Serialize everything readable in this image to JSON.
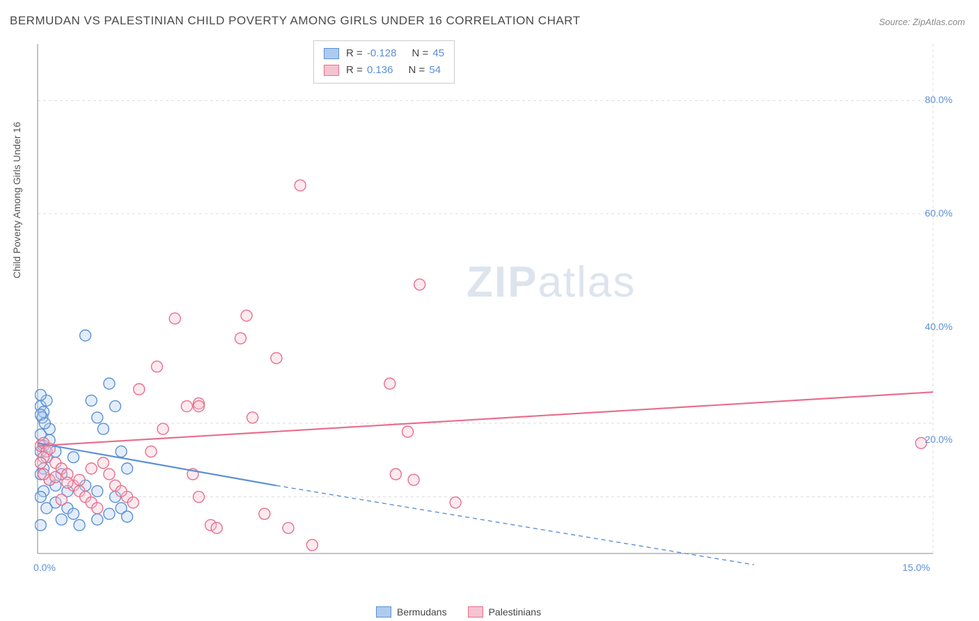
{
  "title": "BERMUDAN VS PALESTINIAN CHILD POVERTY AMONG GIRLS UNDER 16 CORRELATION CHART",
  "source": "Source: ZipAtlas.com",
  "ylabel": "Child Poverty Among Girls Under 16",
  "watermark_bold": "ZIP",
  "watermark_light": "atlas",
  "xlim": [
    0,
    15
  ],
  "ylim": [
    0,
    90
  ],
  "xtick_labels": [
    "0.0%",
    "15.0%"
  ],
  "xtick_positions": [
    0,
    15
  ],
  "ytick_labels": [
    "20.0%",
    "40.0%",
    "60.0%",
    "80.0%"
  ],
  "ytick_positions": [
    20,
    40,
    60,
    80
  ],
  "grid_y": [
    10,
    23,
    60,
    80
  ],
  "background_color": "#ffffff",
  "grid_color": "#dcdcdc",
  "axis_color": "#888888",
  "tick_label_color": "#5b8fd6",
  "marker_radius": 8,
  "marker_fill_opacity": 0.35,
  "marker_stroke_width": 1.4,
  "trend_line_width": 2.2,
  "series": [
    {
      "name": "Bermudans",
      "color": "#5b8fd6",
      "fill": "#aecbef",
      "R": "-0.128",
      "N": "45",
      "trend": {
        "x1": 0,
        "y1": 19.5,
        "x2": 4.0,
        "y2": 12.0,
        "extrap_x2": 12.0,
        "extrap_y2": -2.0
      },
      "points": [
        [
          0.05,
          26
        ],
        [
          0.1,
          25
        ],
        [
          0.08,
          24
        ],
        [
          0.15,
          27
        ],
        [
          0.2,
          22
        ],
        [
          0.05,
          21
        ],
        [
          0.1,
          19
        ],
        [
          0.05,
          18
        ],
        [
          0.2,
          20
        ],
        [
          0.15,
          17
        ],
        [
          0.1,
          15
        ],
        [
          0.05,
          14
        ],
        [
          0.2,
          13
        ],
        [
          0.3,
          12
        ],
        [
          0.1,
          11
        ],
        [
          0.05,
          10
        ],
        [
          0.3,
          9
        ],
        [
          0.5,
          8
        ],
        [
          0.6,
          7
        ],
        [
          0.15,
          8
        ],
        [
          0.4,
          6
        ],
        [
          0.05,
          5
        ],
        [
          0.7,
          5
        ],
        [
          0.9,
          27
        ],
        [
          1.0,
          24
        ],
        [
          1.2,
          30
        ],
        [
          1.3,
          26
        ],
        [
          1.1,
          22
        ],
        [
          1.4,
          18
        ],
        [
          1.5,
          15
        ],
        [
          1.0,
          11
        ],
        [
          1.4,
          8
        ],
        [
          1.5,
          6.5
        ],
        [
          1.0,
          6
        ],
        [
          0.8,
          38.5
        ],
        [
          0.05,
          28
        ],
        [
          0.05,
          24.5
        ],
        [
          0.12,
          23
        ],
        [
          0.3,
          18
        ],
        [
          0.4,
          14
        ],
        [
          0.5,
          11
        ],
        [
          0.6,
          17
        ],
        [
          0.8,
          12
        ],
        [
          1.2,
          7
        ],
        [
          1.3,
          10
        ]
      ]
    },
    {
      "name": "Palestinians",
      "color": "#e76f8c",
      "fill": "#f6c4d0",
      "R": "0.136",
      "N": "54",
      "trend": {
        "x1": 0,
        "y1": 19.0,
        "x2": 15.0,
        "y2": 28.5
      },
      "points": [
        [
          0.05,
          19
        ],
        [
          0.1,
          19.5
        ],
        [
          0.15,
          18
        ],
        [
          0.2,
          18.5
        ],
        [
          0.1,
          17
        ],
        [
          0.3,
          16
        ],
        [
          0.4,
          15
        ],
        [
          0.5,
          14
        ],
        [
          0.2,
          13
        ],
        [
          0.6,
          12
        ],
        [
          0.7,
          11
        ],
        [
          0.8,
          10
        ],
        [
          0.4,
          9.5
        ],
        [
          0.9,
          9
        ],
        [
          1.0,
          8
        ],
        [
          1.2,
          14
        ],
        [
          1.3,
          12
        ],
        [
          1.5,
          10
        ],
        [
          1.7,
          29
        ],
        [
          1.9,
          18
        ],
        [
          2.0,
          33
        ],
        [
          2.1,
          22
        ],
        [
          2.3,
          41.5
        ],
        [
          2.5,
          26
        ],
        [
          2.6,
          14
        ],
        [
          2.7,
          10
        ],
        [
          2.7,
          26.5
        ],
        [
          2.7,
          26
        ],
        [
          2.9,
          5
        ],
        [
          3.0,
          4.5
        ],
        [
          3.4,
          38
        ],
        [
          3.5,
          42
        ],
        [
          3.6,
          24
        ],
        [
          3.8,
          7
        ],
        [
          4.0,
          34.5
        ],
        [
          4.2,
          4.5
        ],
        [
          4.4,
          65
        ],
        [
          4.6,
          1.5
        ],
        [
          5.9,
          30
        ],
        [
          6.0,
          14
        ],
        [
          6.2,
          21.5
        ],
        [
          6.3,
          13
        ],
        [
          6.4,
          47.5
        ],
        [
          7.0,
          9
        ],
        [
          14.8,
          19.5
        ],
        [
          0.05,
          16
        ],
        [
          0.1,
          14
        ],
        [
          0.3,
          13.5
        ],
        [
          0.5,
          12.5
        ],
        [
          0.7,
          13
        ],
        [
          0.9,
          15
        ],
        [
          1.1,
          16
        ],
        [
          1.4,
          11
        ],
        [
          1.6,
          9
        ]
      ]
    }
  ],
  "legend_bottom": [
    "Bermudans",
    "Palestinians"
  ]
}
